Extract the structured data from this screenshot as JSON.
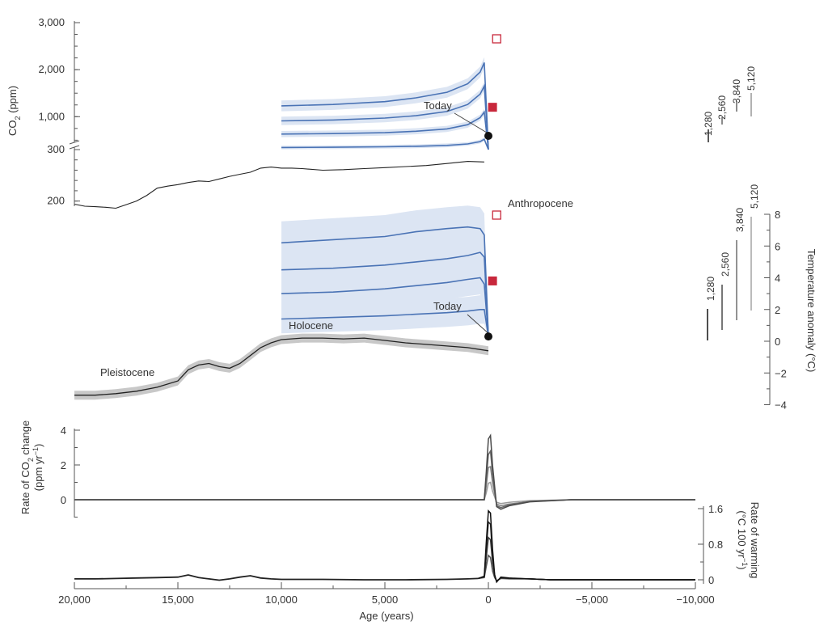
{
  "colors": {
    "axis": "#555555",
    "text": "#333333",
    "history_line": "#222222",
    "history_band": "#c8c8c8",
    "projection_line": "#4a73b5",
    "projection_band": "#dce5f3",
    "marker_red": "#c8283c",
    "today_marker": "#111111"
  },
  "x_axis": {
    "label": "Age (years)",
    "ticks": [
      {
        "value": 20000,
        "label": "20,000"
      },
      {
        "value": 15000,
        "label": "15,000"
      },
      {
        "value": 10000,
        "label": "10,000"
      },
      {
        "value": 5000,
        "label": "5,000"
      },
      {
        "value": 0,
        "label": "0"
      },
      {
        "value": -5000,
        "label": "−5,000"
      },
      {
        "value": -10000,
        "label": "−10,000"
      }
    ]
  },
  "chart_data": [
    {
      "type": "line",
      "panel": "co2",
      "ylabel_parts": [
        "CO",
        "2",
        " (ppm)"
      ],
      "broken_axis": true,
      "y_ticks_upper": [
        {
          "value": 1000,
          "label": "1,000"
        },
        {
          "value": 2000,
          "label": "2,000"
        },
        {
          "value": 3000,
          "label": "3,000"
        }
      ],
      "y_ticks_lower": [
        {
          "value": 200,
          "label": "200"
        },
        {
          "value": 300,
          "label": "300"
        }
      ],
      "history_series": {
        "x": [
          20000,
          19500,
          19000,
          18500,
          18000,
          17500,
          17000,
          16500,
          16000,
          15500,
          15000,
          14500,
          14000,
          13500,
          13000,
          12500,
          12000,
          11500,
          11000,
          10500,
          10000,
          9500,
          9000,
          8000,
          7000,
          6000,
          5000,
          4000,
          3000,
          2000,
          1000,
          200
        ],
        "y": [
          194,
          190,
          189,
          188,
          186,
          193,
          200,
          211,
          225,
          229,
          232,
          236,
          239,
          238,
          243,
          248,
          252,
          256,
          264,
          266,
          264,
          264,
          263,
          260,
          261,
          263,
          265,
          267,
          269,
          273,
          277,
          276
        ]
      },
      "projection_series": [
        {
          "x": [
            0,
            200,
            400,
            1000,
            2000,
            3500,
            5000,
            7500,
            10000
          ],
          "y": [
            300,
            520,
            470,
            420,
            390,
            370,
            360,
            350,
            345
          ]
        },
        {
          "x": [
            0,
            200,
            400,
            1000,
            2000,
            3500,
            5000,
            7500,
            10000
          ],
          "y": [
            300,
            1100,
            980,
            830,
            740,
            690,
            660,
            640,
            630
          ]
        },
        {
          "x": [
            0,
            200,
            400,
            1000,
            2000,
            3500,
            5000,
            7500,
            10000
          ],
          "y": [
            300,
            1650,
            1480,
            1260,
            1110,
            1020,
            970,
            930,
            910
          ]
        },
        {
          "x": [
            0,
            200,
            400,
            1000,
            2000,
            3500,
            5000,
            7500,
            10000
          ],
          "y": [
            300,
            2150,
            1950,
            1700,
            1520,
            1400,
            1320,
            1260,
            1230
          ]
        }
      ],
      "scenario_labels": [
        "1,280",
        "2,560",
        "3,840",
        "5,120"
      ],
      "annotations": {
        "today": "Today"
      }
    },
    {
      "type": "line",
      "panel": "temperature",
      "ylabel": "Temperature anomaly (°C)",
      "ylim": [
        -4,
        8
      ],
      "y_ticks": [
        {
          "value": -4,
          "label": "−4"
        },
        {
          "value": -2,
          "label": "−2"
        },
        {
          "value": 0,
          "label": "0"
        },
        {
          "value": 2,
          "label": "2"
        },
        {
          "value": 4,
          "label": "4"
        },
        {
          "value": 6,
          "label": "6"
        },
        {
          "value": 8,
          "label": "8"
        }
      ],
      "history_series": {
        "x": [
          20000,
          19000,
          18000,
          17000,
          16000,
          15000,
          14500,
          14000,
          13500,
          13000,
          12500,
          12000,
          11500,
          11000,
          10500,
          10000,
          9000,
          8000,
          7000,
          6000,
          5000,
          4000,
          3000,
          2000,
          1000,
          0
        ],
        "y": [
          -3.4,
          -3.4,
          -3.3,
          -3.15,
          -2.9,
          -2.5,
          -1.8,
          -1.5,
          -1.4,
          -1.6,
          -1.7,
          -1.4,
          -0.9,
          -0.4,
          -0.1,
          0.1,
          0.2,
          0.2,
          0.15,
          0.2,
          0.05,
          -0.1,
          -0.2,
          -0.3,
          -0.4,
          -0.6
        ]
      },
      "projection_series": [
        {
          "x": [
            0,
            200,
            400,
            1000,
            2000,
            3500,
            5000,
            7500,
            10000
          ],
          "y": [
            0.3,
            2.0,
            2.0,
            1.9,
            1.8,
            1.7,
            1.6,
            1.5,
            1.4
          ]
        },
        {
          "x": [
            0,
            200,
            400,
            1000,
            2000,
            3500,
            5000,
            7500,
            10000
          ],
          "y": [
            0.3,
            3.6,
            4.0,
            3.9,
            3.7,
            3.5,
            3.3,
            3.1,
            3.0
          ]
        },
        {
          "x": [
            0,
            200,
            400,
            1000,
            2000,
            3500,
            5000,
            7500,
            10000
          ],
          "y": [
            0.3,
            5.3,
            5.6,
            5.4,
            5.2,
            5.0,
            4.8,
            4.6,
            4.5
          ]
        },
        {
          "x": [
            0,
            200,
            400,
            1000,
            2000,
            3500,
            5000,
            7500,
            10000
          ],
          "y": [
            0.3,
            6.7,
            7.1,
            7.2,
            7.1,
            6.9,
            6.6,
            6.4,
            6.2
          ]
        }
      ],
      "scenario_labels": [
        "1,280",
        "2,560",
        "3,840",
        "5,120"
      ],
      "annotations": {
        "pleistocene": "Pleistocene",
        "holocene": "Holocene",
        "anthropocene": "Anthropocene",
        "today": "Today"
      }
    },
    {
      "type": "line",
      "panel": "co2_rate",
      "ylabel_line1": "Rate of CO",
      "ylabel_line1_sub": "2",
      "ylabel_line1_tail": " change",
      "ylabel_line2": "(ppm yr",
      "ylabel_line2_sup": "−1",
      "ylabel_line2_tail": ")",
      "y_ticks": [
        {
          "value": 0,
          "label": "0"
        },
        {
          "value": 2,
          "label": "2"
        },
        {
          "value": 4,
          "label": "4"
        }
      ],
      "series": [
        {
          "x": [
            20000,
            2000,
            200,
            100,
            0,
            -100,
            -200,
            -400,
            -600,
            -1000,
            -2000,
            -4000,
            -10000
          ],
          "y": [
            0,
            0,
            0,
            0.4,
            0.95,
            1.0,
            0.5,
            -0.15,
            -0.22,
            -0.15,
            -0.05,
            0,
            0
          ]
        },
        {
          "x": [
            20000,
            2000,
            200,
            100,
            0,
            -100,
            -200,
            -400,
            -600,
            -1000,
            -2000,
            -4000,
            -10000
          ],
          "y": [
            0,
            0,
            0,
            0.8,
            1.85,
            1.9,
            1.0,
            -0.25,
            -0.35,
            -0.25,
            -0.1,
            0,
            0
          ]
        },
        {
          "x": [
            20000,
            2000,
            200,
            100,
            0,
            -100,
            -200,
            -400,
            -600,
            -1000,
            -2000,
            -4000,
            -10000
          ],
          "y": [
            0,
            0,
            0,
            1.2,
            2.6,
            2.8,
            1.5,
            -0.35,
            -0.45,
            -0.3,
            -0.1,
            0,
            0
          ]
        },
        {
          "x": [
            20000,
            2000,
            200,
            100,
            0,
            -100,
            -200,
            -400,
            -600,
            -1000,
            -2000,
            -4000,
            -10000
          ],
          "y": [
            0,
            0,
            0,
            1.6,
            3.5,
            3.7,
            2.0,
            -0.4,
            -0.55,
            -0.35,
            -0.12,
            0,
            0
          ]
        }
      ]
    },
    {
      "type": "line",
      "panel": "warming_rate",
      "ylabel_line1": "Rate of warming",
      "ylabel_line2": "(°C 100 yr",
      "ylabel_line2_sup": "−1",
      "ylabel_line2_tail": ")",
      "y_ticks": [
        {
          "value": 0,
          "label": "0"
        },
        {
          "value": 0.8,
          "label": "0.8"
        },
        {
          "value": 1.6,
          "label": "1.6"
        }
      ],
      "history_series": {
        "x": [
          20000,
          19000,
          18000,
          17000,
          16000,
          15000,
          14500,
          14000,
          13500,
          13000,
          12500,
          12000,
          11500,
          11000,
          10500,
          10000,
          8000,
          6000,
          4000,
          2000,
          1000,
          500
        ],
        "y": [
          0.02,
          0.02,
          0.03,
          0.04,
          0.05,
          0.06,
          0.11,
          0.05,
          0.02,
          -0.01,
          0.02,
          0.06,
          0.09,
          0.04,
          0.02,
          0.01,
          0.01,
          0.0,
          0.0,
          0.01,
          0.02,
          0.03
        ]
      },
      "series": [
        {
          "x": [
            500,
            200,
            100,
            0,
            -100,
            -200,
            -300,
            -400,
            -600,
            -1000,
            -2000,
            -3000,
            -10000
          ],
          "y": [
            0.03,
            0.05,
            0.3,
            0.55,
            0.5,
            0.2,
            0.05,
            -0.02,
            0.03,
            0.02,
            0.02,
            0.0,
            0.0
          ]
        },
        {
          "x": [
            500,
            200,
            100,
            0,
            -100,
            -200,
            -300,
            -400,
            -600,
            -1000,
            -2000,
            -3000,
            -10000
          ],
          "y": [
            0.03,
            0.06,
            0.5,
            0.95,
            0.9,
            0.4,
            0.08,
            -0.03,
            0.04,
            0.03,
            0.02,
            0.0,
            0.0
          ]
        },
        {
          "x": [
            500,
            200,
            100,
            0,
            -100,
            -200,
            -300,
            -400,
            -600,
            -1000,
            -2000,
            -3000,
            -10000
          ],
          "y": [
            0.03,
            0.07,
            0.7,
            1.3,
            1.25,
            0.55,
            0.1,
            -0.04,
            0.05,
            0.03,
            0.02,
            0.0,
            0.0
          ]
        },
        {
          "x": [
            500,
            200,
            100,
            0,
            -100,
            -200,
            -300,
            -400,
            -600,
            -1000,
            -2000,
            -3000,
            -10000
          ],
          "y": [
            0.03,
            0.08,
            0.85,
            1.55,
            1.5,
            0.7,
            0.12,
            -0.05,
            0.06,
            0.04,
            0.02,
            0.0,
            0.0
          ]
        }
      ]
    }
  ]
}
